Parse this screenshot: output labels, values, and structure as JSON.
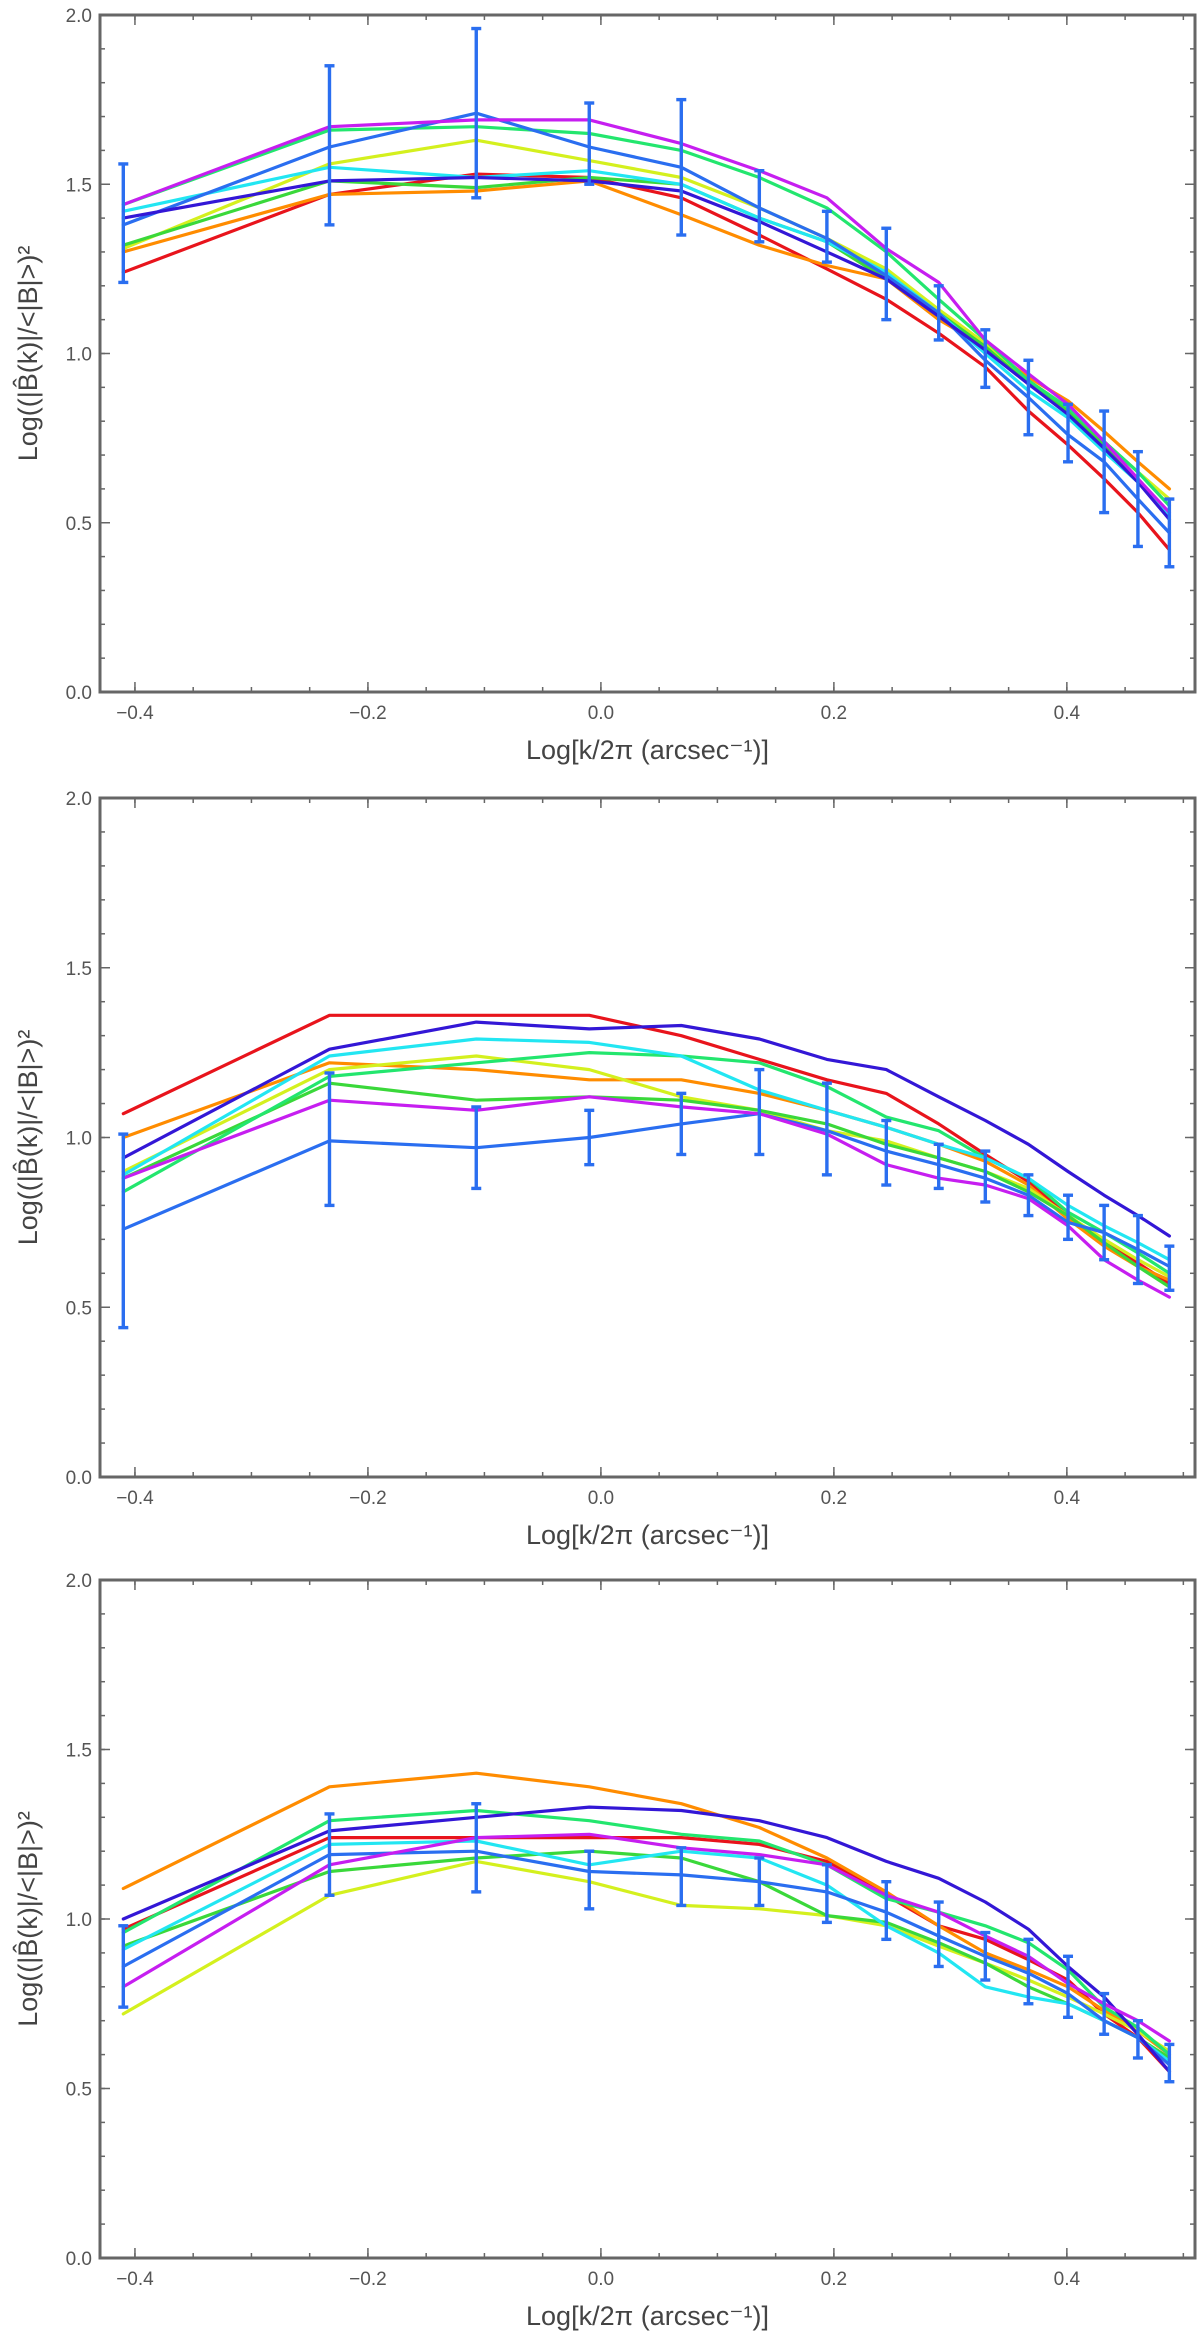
{
  "chart_data": [
    {
      "type": "line",
      "xlabel": "Log[k/2π (arcsec⁻¹)]",
      "ylabel": "Log((|B̂(k)|/<|B|>)²",
      "xlim": [
        -0.43,
        0.51
      ],
      "ylim": [
        0.0,
        2.0
      ],
      "xticks": [
        -0.4,
        -0.2,
        0.0,
        0.2,
        0.4
      ],
      "xtick_labels": [
        "-0.4",
        "-0.2",
        "0.0",
        "0.2",
        "0.4"
      ],
      "yticks": [
        0.0,
        0.5,
        1.0,
        1.5,
        2.0
      ],
      "ytick_labels": [
        "0.0",
        "0.5",
        "1.0",
        "1.5",
        "2.0"
      ],
      "x": [
        -0.41,
        -0.233,
        -0.107,
        -0.01,
        0.069,
        0.136,
        0.194,
        0.245,
        0.29,
        0.33,
        0.367,
        0.401,
        0.432,
        0.461,
        0.488
      ],
      "series": [
        {
          "name": "red",
          "color": "#e8141c",
          "values": [
            1.24,
            1.47,
            1.53,
            1.52,
            1.46,
            1.35,
            1.25,
            1.16,
            1.06,
            0.96,
            0.83,
            0.73,
            0.63,
            0.53,
            0.42
          ]
        },
        {
          "name": "orange",
          "color": "#ff8c00",
          "values": [
            1.3,
            1.47,
            1.48,
            1.51,
            1.41,
            1.32,
            1.26,
            1.22,
            1.1,
            1.02,
            0.93,
            0.86,
            0.77,
            0.68,
            0.6
          ]
        },
        {
          "name": "yellow-green",
          "color": "#d4f01e",
          "values": [
            1.31,
            1.56,
            1.63,
            1.57,
            1.52,
            1.43,
            1.34,
            1.25,
            1.13,
            1.03,
            0.92,
            0.84,
            0.74,
            0.65,
            0.57
          ]
        },
        {
          "name": "green",
          "color": "#3ad83a",
          "values": [
            1.32,
            1.51,
            1.49,
            1.52,
            1.5,
            1.4,
            1.33,
            1.22,
            1.12,
            1.02,
            0.91,
            0.83,
            0.73,
            0.63,
            0.51
          ]
        },
        {
          "name": "spring-green",
          "color": "#23e66e",
          "values": [
            1.44,
            1.66,
            1.67,
            1.65,
            1.6,
            1.52,
            1.43,
            1.3,
            1.16,
            1.04,
            0.92,
            0.84,
            0.74,
            0.65,
            0.55
          ]
        },
        {
          "name": "cyan",
          "color": "#22e6f2",
          "values": [
            1.42,
            1.55,
            1.52,
            1.54,
            1.5,
            1.4,
            1.33,
            1.24,
            1.12,
            1.0,
            0.89,
            0.81,
            0.71,
            0.62,
            0.52
          ]
        },
        {
          "name": "blue",
          "color": "#2a6ef0",
          "values": [
            1.38,
            1.61,
            1.71,
            1.61,
            1.55,
            1.43,
            1.34,
            1.23,
            1.12,
            0.98,
            0.87,
            0.76,
            0.68,
            0.57,
            0.47
          ]
        },
        {
          "name": "indigo",
          "color": "#3317d6",
          "values": [
            1.4,
            1.51,
            1.52,
            1.51,
            1.48,
            1.39,
            1.3,
            1.22,
            1.11,
            1.01,
            0.91,
            0.82,
            0.72,
            0.62,
            0.51
          ]
        },
        {
          "name": "magenta",
          "color": "#c61ef0",
          "values": [
            1.44,
            1.67,
            1.69,
            1.69,
            1.62,
            1.54,
            1.46,
            1.31,
            1.21,
            1.04,
            0.94,
            0.85,
            0.74,
            0.63,
            0.53
          ]
        }
      ],
      "errorbar_series": "blue",
      "errorbars": [
        {
          "x": -0.41,
          "low": 1.21,
          "high": 1.56
        },
        {
          "x": -0.233,
          "low": 1.38,
          "high": 1.85
        },
        {
          "x": -0.107,
          "low": 1.46,
          "high": 1.96
        },
        {
          "x": -0.01,
          "low": 1.5,
          "high": 1.74
        },
        {
          "x": 0.069,
          "low": 1.35,
          "high": 1.75
        },
        {
          "x": 0.136,
          "low": 1.33,
          "high": 1.54
        },
        {
          "x": 0.194,
          "low": 1.27,
          "high": 1.42
        },
        {
          "x": 0.245,
          "low": 1.1,
          "high": 1.37
        },
        {
          "x": 0.29,
          "low": 1.04,
          "high": 1.2
        },
        {
          "x": 0.33,
          "low": 0.9,
          "high": 1.07
        },
        {
          "x": 0.367,
          "low": 0.76,
          "high": 0.98
        },
        {
          "x": 0.401,
          "low": 0.68,
          "high": 0.85
        },
        {
          "x": 0.432,
          "low": 0.53,
          "high": 0.83
        },
        {
          "x": 0.461,
          "low": 0.43,
          "high": 0.71
        },
        {
          "x": 0.488,
          "low": 0.37,
          "high": 0.57
        }
      ]
    },
    {
      "type": "line",
      "xlabel": "Log[k/2π (arcsec⁻¹)]",
      "ylabel": "Log((|B̂(k)|/<|B|>)²",
      "xlim": [
        -0.43,
        0.51
      ],
      "ylim": [
        0.0,
        2.0
      ],
      "xticks": [
        -0.4,
        -0.2,
        0.0,
        0.2,
        0.4
      ],
      "xtick_labels": [
        "-0.4",
        "-0.2",
        "0.0",
        "0.2",
        "0.4"
      ],
      "yticks": [
        0.0,
        0.5,
        1.0,
        1.5,
        2.0
      ],
      "ytick_labels": [
        "0.0",
        "0.5",
        "1.0",
        "1.5",
        "2.0"
      ],
      "x": [
        -0.41,
        -0.233,
        -0.107,
        -0.01,
        0.069,
        0.136,
        0.194,
        0.245,
        0.29,
        0.33,
        0.367,
        0.401,
        0.432,
        0.461,
        0.488
      ],
      "series": [
        {
          "name": "red",
          "color": "#e8141c",
          "values": [
            1.07,
            1.36,
            1.36,
            1.36,
            1.3,
            1.23,
            1.17,
            1.13,
            1.04,
            0.95,
            0.87,
            0.77,
            0.69,
            0.63,
            0.57
          ]
        },
        {
          "name": "orange",
          "color": "#ff8c00",
          "values": [
            1.0,
            1.22,
            1.2,
            1.17,
            1.17,
            1.13,
            1.08,
            1.03,
            0.98,
            0.93,
            0.86,
            0.76,
            0.68,
            0.62,
            0.58
          ]
        },
        {
          "name": "yellow-green",
          "color": "#d4f01e",
          "values": [
            0.9,
            1.2,
            1.24,
            1.2,
            1.12,
            1.08,
            1.02,
            0.99,
            0.94,
            0.9,
            0.85,
            0.77,
            0.7,
            0.64,
            0.59
          ]
        },
        {
          "name": "green",
          "color": "#3ad83a",
          "values": [
            0.88,
            1.16,
            1.11,
            1.12,
            1.11,
            1.08,
            1.04,
            0.98,
            0.94,
            0.9,
            0.84,
            0.77,
            0.69,
            0.62,
            0.56
          ]
        },
        {
          "name": "spring-green",
          "color": "#23e66e",
          "values": [
            0.84,
            1.18,
            1.22,
            1.25,
            1.24,
            1.22,
            1.15,
            1.06,
            1.02,
            0.94,
            0.88,
            0.78,
            0.72,
            0.66,
            0.6
          ]
        },
        {
          "name": "cyan",
          "color": "#22e6f2",
          "values": [
            0.89,
            1.24,
            1.29,
            1.28,
            1.24,
            1.14,
            1.08,
            1.03,
            0.98,
            0.94,
            0.88,
            0.8,
            0.74,
            0.69,
            0.64
          ]
        },
        {
          "name": "blue",
          "color": "#2a6ef0",
          "values": [
            0.73,
            0.99,
            0.97,
            1.0,
            1.04,
            1.07,
            1.02,
            0.96,
            0.92,
            0.88,
            0.83,
            0.75,
            0.72,
            0.67,
            0.62
          ]
        },
        {
          "name": "indigo",
          "color": "#3317d6",
          "values": [
            0.94,
            1.26,
            1.34,
            1.32,
            1.33,
            1.29,
            1.23,
            1.2,
            1.12,
            1.05,
            0.98,
            0.9,
            0.83,
            0.77,
            0.71
          ]
        },
        {
          "name": "magenta",
          "color": "#c61ef0",
          "values": [
            0.88,
            1.11,
            1.08,
            1.12,
            1.09,
            1.07,
            1.01,
            0.92,
            0.88,
            0.86,
            0.82,
            0.74,
            0.64,
            0.58,
            0.53
          ]
        }
      ],
      "errorbar_series": "blue",
      "errorbars": [
        {
          "x": -0.41,
          "low": 0.44,
          "high": 1.01
        },
        {
          "x": -0.233,
          "low": 0.8,
          "high": 1.19
        },
        {
          "x": -0.107,
          "low": 0.85,
          "high": 1.09
        },
        {
          "x": -0.01,
          "low": 0.92,
          "high": 1.08
        },
        {
          "x": 0.069,
          "low": 0.95,
          "high": 1.13
        },
        {
          "x": 0.136,
          "low": 0.95,
          "high": 1.2
        },
        {
          "x": 0.194,
          "low": 0.89,
          "high": 1.16
        },
        {
          "x": 0.245,
          "low": 0.86,
          "high": 1.05
        },
        {
          "x": 0.29,
          "low": 0.85,
          "high": 0.98
        },
        {
          "x": 0.33,
          "low": 0.81,
          "high": 0.96
        },
        {
          "x": 0.367,
          "low": 0.77,
          "high": 0.89
        },
        {
          "x": 0.401,
          "low": 0.7,
          "high": 0.83
        },
        {
          "x": 0.432,
          "low": 0.64,
          "high": 0.8
        },
        {
          "x": 0.461,
          "low": 0.57,
          "high": 0.77
        },
        {
          "x": 0.488,
          "low": 0.55,
          "high": 0.68
        }
      ]
    },
    {
      "type": "line",
      "xlabel": "Log[k/2π (arcsec⁻¹)]",
      "ylabel": "Log((|B̂(k)|/<|B|>)²",
      "xlim": [
        -0.43,
        0.51
      ],
      "ylim": [
        0.0,
        2.0
      ],
      "xticks": [
        -0.4,
        -0.2,
        0.0,
        0.2,
        0.4
      ],
      "xtick_labels": [
        "-0.4",
        "-0.2",
        "0.0",
        "0.2",
        "0.4"
      ],
      "yticks": [
        0.0,
        0.5,
        1.0,
        1.5,
        2.0
      ],
      "ytick_labels": [
        "0.0",
        "0.5",
        "1.0",
        "1.5",
        "2.0"
      ],
      "x": [
        -0.41,
        -0.233,
        -0.107,
        -0.01,
        0.069,
        0.136,
        0.194,
        0.245,
        0.29,
        0.33,
        0.367,
        0.401,
        0.432,
        0.461,
        0.488
      ],
      "series": [
        {
          "name": "red",
          "color": "#e8141c",
          "values": [
            0.97,
            1.24,
            1.24,
            1.24,
            1.24,
            1.22,
            1.17,
            1.07,
            0.98,
            0.94,
            0.88,
            0.82,
            0.72,
            0.65,
            0.55
          ]
        },
        {
          "name": "orange",
          "color": "#ff8c00",
          "values": [
            1.09,
            1.39,
            1.43,
            1.39,
            1.34,
            1.27,
            1.18,
            1.08,
            0.98,
            0.9,
            0.85,
            0.8,
            0.73,
            0.67,
            0.6
          ]
        },
        {
          "name": "yellow-green",
          "color": "#d4f01e",
          "values": [
            0.72,
            1.07,
            1.17,
            1.11,
            1.04,
            1.03,
            1.01,
            0.98,
            0.92,
            0.87,
            0.82,
            0.77,
            0.72,
            0.67,
            0.61
          ]
        },
        {
          "name": "green",
          "color": "#3ad83a",
          "values": [
            0.92,
            1.14,
            1.18,
            1.2,
            1.18,
            1.11,
            1.01,
            0.99,
            0.93,
            0.87,
            0.8,
            0.75,
            0.7,
            0.65,
            0.59
          ]
        },
        {
          "name": "spring-green",
          "color": "#23e66e",
          "values": [
            0.96,
            1.29,
            1.32,
            1.29,
            1.25,
            1.23,
            1.16,
            1.06,
            1.02,
            0.98,
            0.93,
            0.85,
            0.74,
            0.68,
            0.6
          ]
        },
        {
          "name": "cyan",
          "color": "#22e6f2",
          "values": [
            0.91,
            1.22,
            1.23,
            1.16,
            1.2,
            1.18,
            1.1,
            0.98,
            0.9,
            0.8,
            0.77,
            0.75,
            0.7,
            0.65,
            0.58
          ]
        },
        {
          "name": "blue",
          "color": "#2a6ef0",
          "values": [
            0.86,
            1.19,
            1.2,
            1.14,
            1.13,
            1.11,
            1.08,
            1.02,
            0.95,
            0.89,
            0.84,
            0.78,
            0.7,
            0.65,
            0.57
          ]
        },
        {
          "name": "indigo",
          "color": "#3317d6",
          "values": [
            1.0,
            1.26,
            1.3,
            1.33,
            1.32,
            1.29,
            1.24,
            1.17,
            1.12,
            1.05,
            0.97,
            0.86,
            0.77,
            0.66,
            0.55
          ]
        },
        {
          "name": "magenta",
          "color": "#c61ef0",
          "values": [
            0.8,
            1.16,
            1.24,
            1.25,
            1.21,
            1.19,
            1.16,
            1.07,
            1.02,
            0.95,
            0.89,
            0.81,
            0.75,
            0.7,
            0.64
          ]
        }
      ],
      "errorbar_series": "blue",
      "errorbars": [
        {
          "x": -0.41,
          "low": 0.74,
          "high": 0.98
        },
        {
          "x": -0.233,
          "low": 1.07,
          "high": 1.31
        },
        {
          "x": -0.107,
          "low": 1.08,
          "high": 1.34
        },
        {
          "x": -0.01,
          "low": 1.03,
          "high": 1.2
        },
        {
          "x": 0.069,
          "low": 1.04,
          "high": 1.21
        },
        {
          "x": 0.136,
          "low": 1.04,
          "high": 1.18
        },
        {
          "x": 0.194,
          "low": 0.99,
          "high": 1.16
        },
        {
          "x": 0.245,
          "low": 0.94,
          "high": 1.11
        },
        {
          "x": 0.29,
          "low": 0.86,
          "high": 1.05
        },
        {
          "x": 0.33,
          "low": 0.82,
          "high": 0.96
        },
        {
          "x": 0.367,
          "low": 0.75,
          "high": 0.94
        },
        {
          "x": 0.401,
          "low": 0.71,
          "high": 0.89
        },
        {
          "x": 0.432,
          "low": 0.66,
          "high": 0.78
        },
        {
          "x": 0.461,
          "low": 0.59,
          "high": 0.7
        },
        {
          "x": 0.488,
          "low": 0.52,
          "high": 0.63
        }
      ]
    }
  ]
}
